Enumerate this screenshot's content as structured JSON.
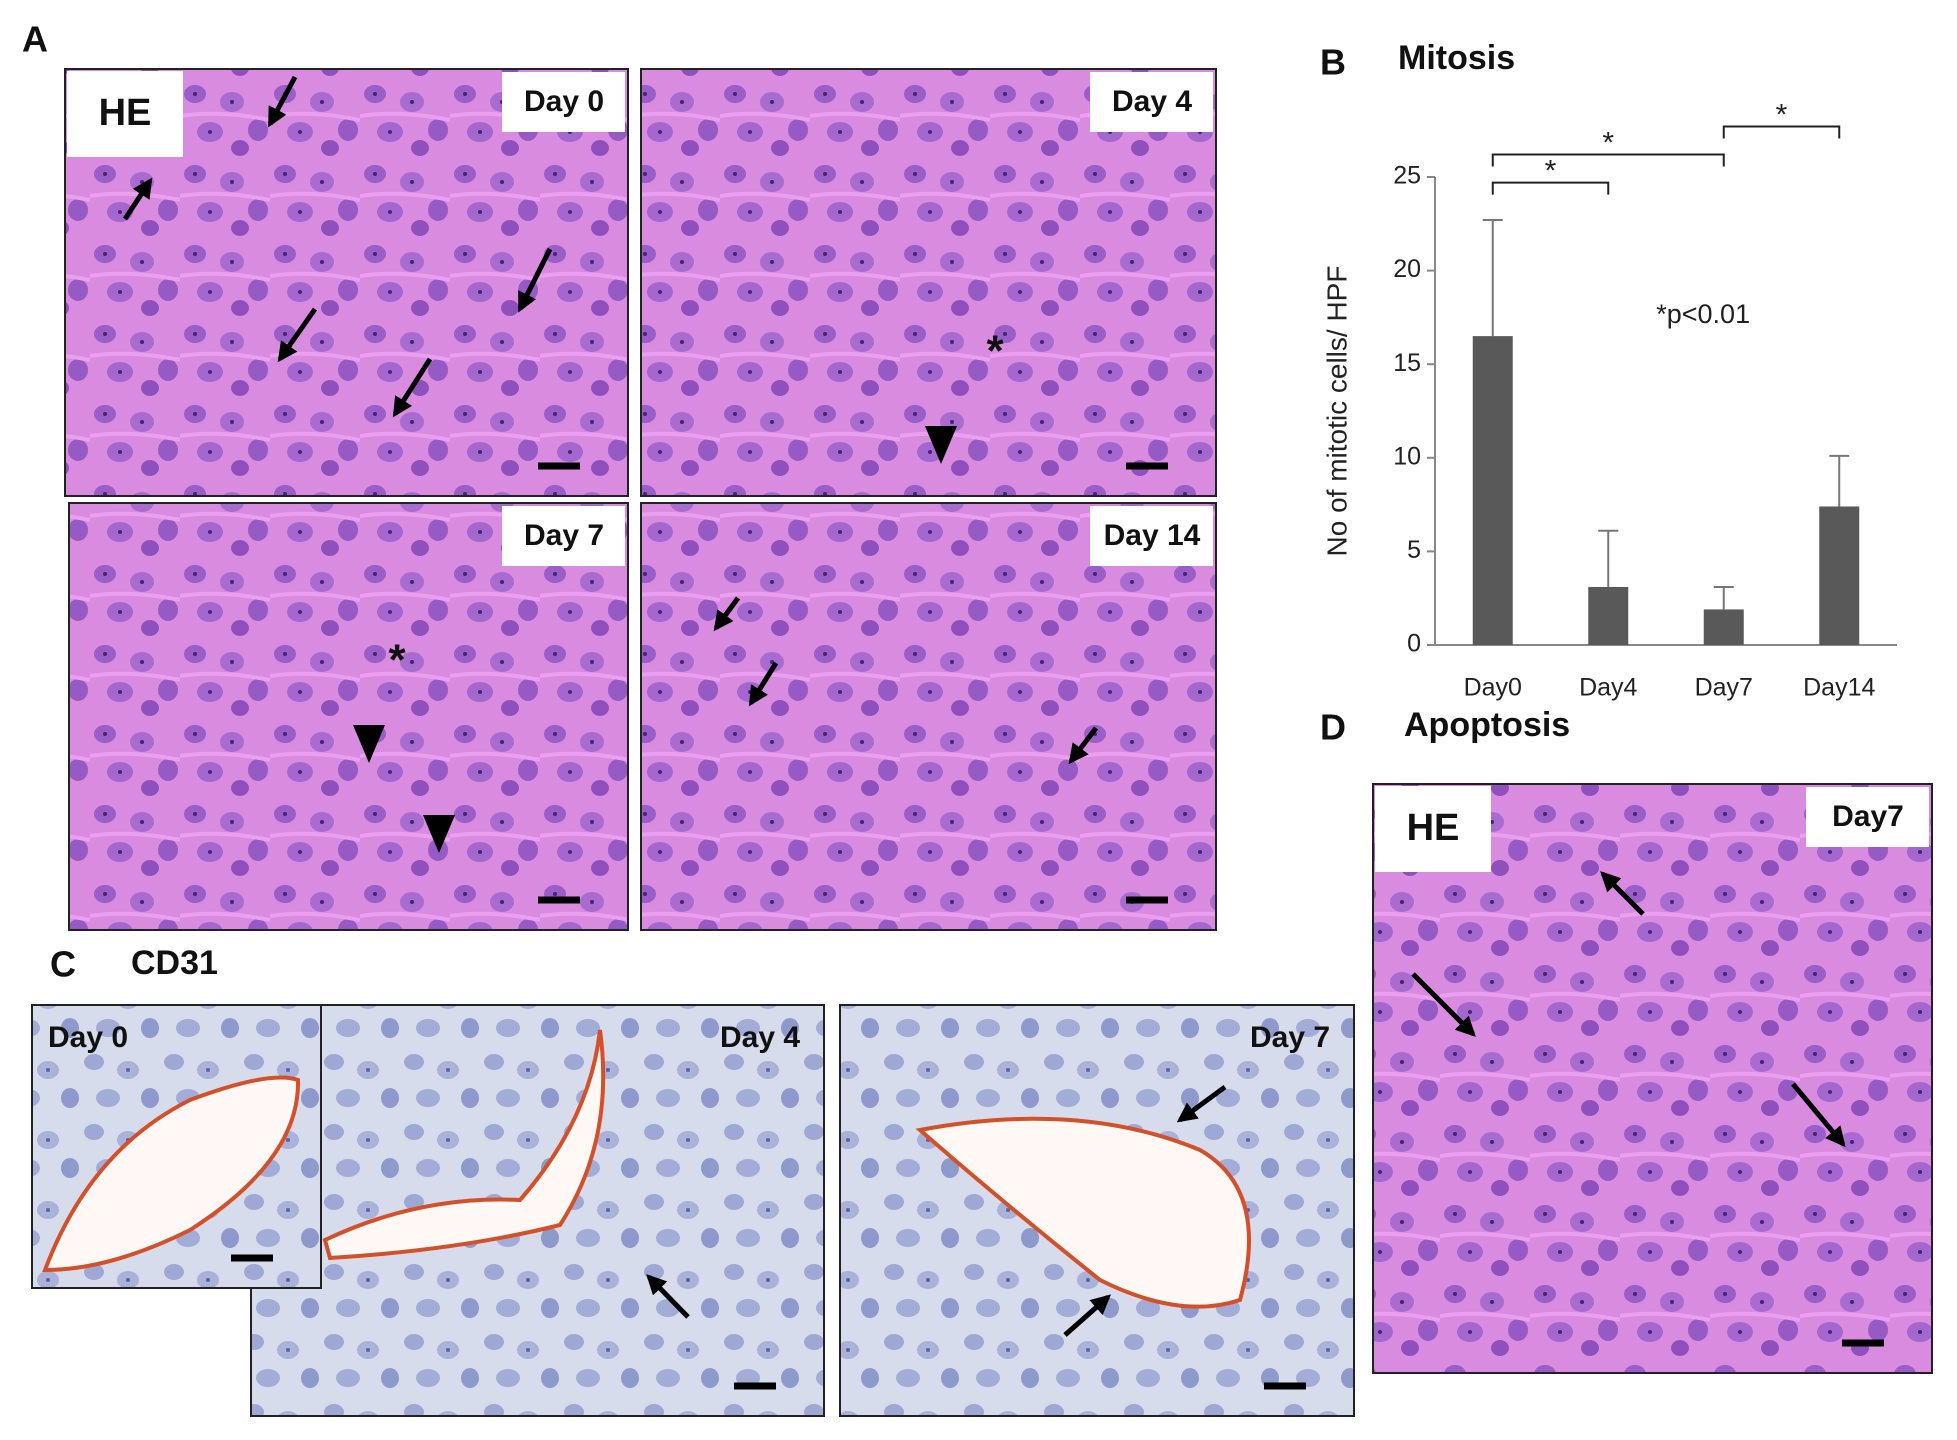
{
  "panels": {
    "A": {
      "label": "A",
      "images": [
        {
          "stain": "HE",
          "day": "Day 0"
        },
        {
          "day": "Day 4",
          "asterisk": "*"
        },
        {
          "day": "Day 7",
          "asterisk": "*"
        },
        {
          "day": "Day 14"
        }
      ]
    },
    "C": {
      "label": "C",
      "title": "CD31",
      "images": [
        {
          "day": "Day 0"
        },
        {
          "day": "Day 4"
        },
        {
          "day": "Day 7"
        }
      ]
    },
    "D": {
      "label": "D",
      "title": "Apoptosis",
      "stain": "HE",
      "day": "Day7"
    }
  },
  "chart_data": {
    "type": "bar",
    "panel_label": "B",
    "title": "Mitosis",
    "y_label": "No of mitotic cells/ HPF",
    "categories": [
      "Day0",
      "Day4",
      "Day7",
      "Day14"
    ],
    "values": [
      16.5,
      3.1,
      1.9,
      7.4
    ],
    "errors": [
      6.2,
      3.0,
      1.2,
      2.7
    ],
    "color": "#595959",
    "ylim": [
      0,
      25
    ],
    "yticks": [
      0,
      5,
      10,
      15,
      20,
      25
    ],
    "annotation": "*p<0.01",
    "significance": [
      {
        "between": [
          "Day0",
          "Day4"
        ],
        "label": "*"
      },
      {
        "between": [
          "Day0",
          "Day7"
        ],
        "label": "*"
      },
      {
        "between": [
          "Day7",
          "Day14"
        ],
        "label": "*"
      }
    ]
  }
}
